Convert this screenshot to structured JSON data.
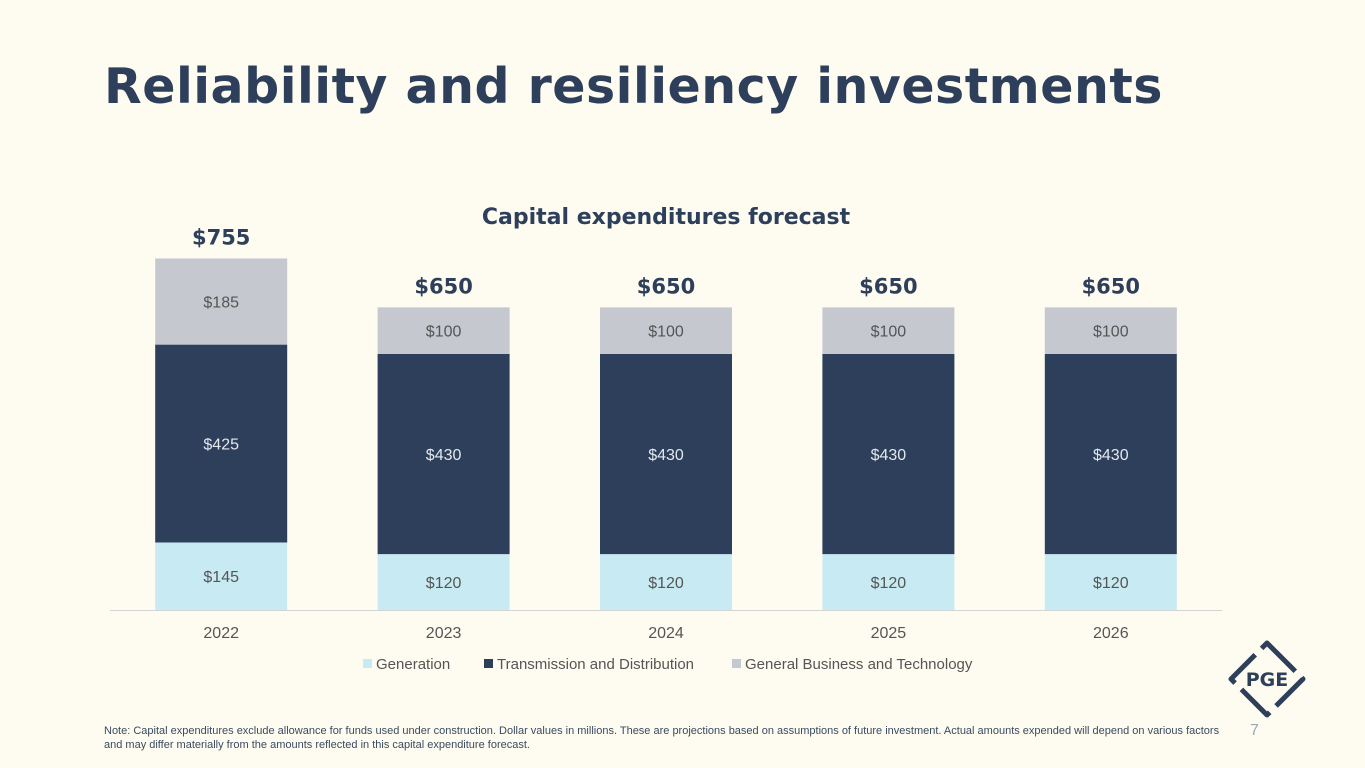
{
  "slide": {
    "title": "Reliability and resiliency investments",
    "note": "Note: Capital expenditures exclude allowance for funds used under construction. Dollar values in millions. These are projections based on assumptions of future investment. Actual amounts expended will depend on various factors and may differ materially from the amounts reflected in this capital expenditure forecast.",
    "page_number": "7",
    "logo_text": "PGE"
  },
  "colors": {
    "title": "#2D3F5A",
    "generation": "#C8EBF3",
    "transmission": "#2D3F5A",
    "general": "#C6C8D0"
  },
  "chart_data": {
    "type": "bar",
    "stacked": true,
    "title": "Capital expenditures forecast",
    "categories": [
      "2022",
      "2023",
      "2024",
      "2025",
      "2026"
    ],
    "series": [
      {
        "name": "Generation",
        "values": [
          145,
          120,
          120,
          120,
          120
        ],
        "labels": [
          "$145",
          "$120",
          "$120",
          "$120",
          "$120"
        ],
        "color": "#C8EBF3",
        "label_color": "#555555"
      },
      {
        "name": "Transmission and Distribution",
        "values": [
          425,
          430,
          430,
          430,
          430
        ],
        "labels": [
          "$425",
          "$430",
          "$430",
          "$430",
          "$430"
        ],
        "color": "#2D3F5A",
        "label_color": "#E4E8EE"
      },
      {
        "name": "General Business and Technology",
        "values": [
          185,
          100,
          100,
          100,
          100
        ],
        "labels": [
          "$185",
          "$100",
          "$100",
          "$100",
          "$100"
        ],
        "color": "#C6C8D0",
        "label_color": "#555555"
      }
    ],
    "totals": [
      "$755",
      "$650",
      "$650",
      "$650",
      "$650"
    ],
    "ylim": [
      0,
      800
    ],
    "xlabel": "",
    "ylabel": "",
    "grid": false,
    "legend": "bottom"
  }
}
